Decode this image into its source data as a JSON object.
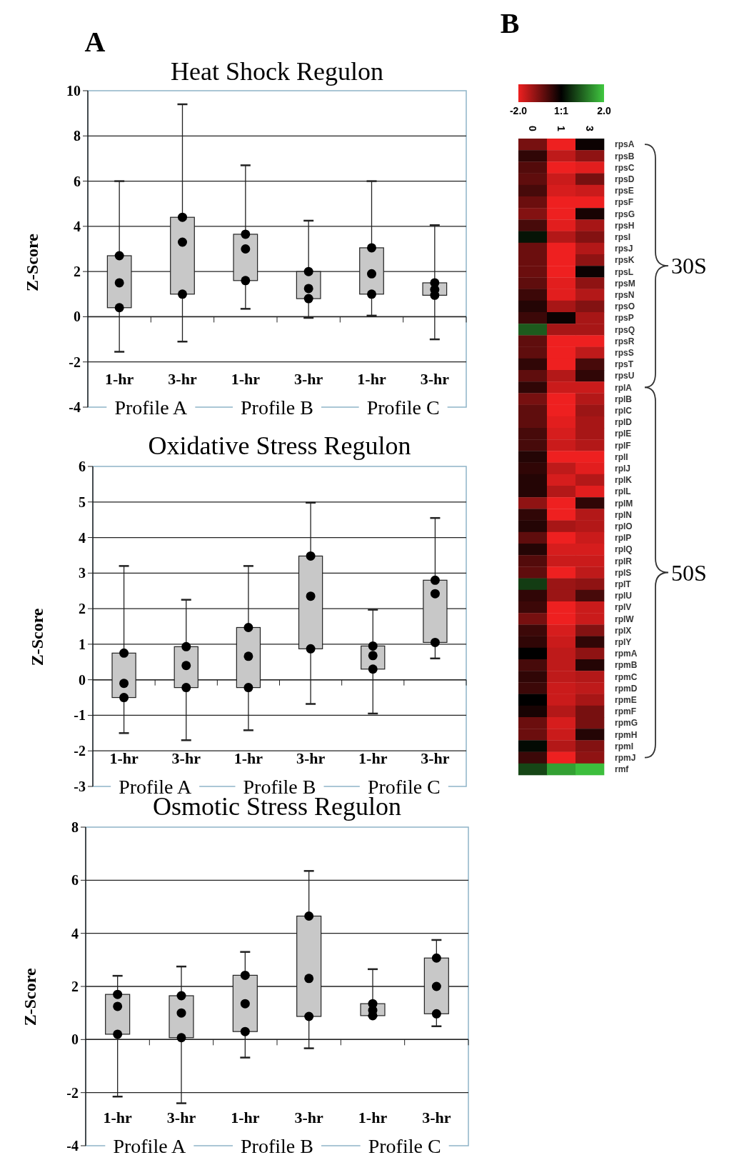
{
  "chart_data": [
    {
      "type": "box",
      "title": "Heat Shock Regulon",
      "ylabel": "Z-Score",
      "categories": [
        "1-hr",
        "3-hr",
        "1-hr",
        "3-hr",
        "1-hr",
        "3-hr"
      ],
      "color": "#c8c8c8",
      "ylim": [
        -4,
        10
      ],
      "yticks": [
        -4,
        -2,
        0,
        2,
        4,
        6,
        8,
        10
      ],
      "grid": "y",
      "annotations": [
        "A",
        "Profile A",
        "Profile B",
        "Profile C"
      ],
      "boxes": [
        {
          "low": -1.55,
          "q1": 0.4,
          "median": 1.5,
          "q3": 2.7,
          "high": 6.0,
          "outliers": [
            0.4,
            2.7
          ]
        },
        {
          "low": -1.1,
          "q1": 1.0,
          "median": 3.3,
          "q3": 4.4,
          "high": 9.4,
          "outliers": [
            1.0,
            4.4
          ]
        },
        {
          "low": 0.35,
          "q1": 1.6,
          "median": 3.0,
          "q3": 3.65,
          "high": 6.7,
          "outliers": [
            1.6,
            3.65
          ]
        },
        {
          "low": -0.05,
          "q1": 0.8,
          "median": 1.25,
          "q3": 2.0,
          "high": 4.25,
          "outliers": [
            0.8,
            2.0
          ]
        },
        {
          "low": 0.05,
          "q1": 1.0,
          "median": 1.9,
          "q3": 3.05,
          "high": 6.0,
          "outliers": [
            1.0,
            3.05
          ]
        },
        {
          "low": -1.0,
          "q1": 0.95,
          "median": 1.2,
          "q3": 1.5,
          "high": 4.05,
          "outliers": [
            0.95,
            1.5
          ]
        }
      ]
    },
    {
      "type": "box",
      "title": "Oxidative Stress Regulon",
      "ylabel": "Z-Score",
      "categories": [
        "1-hr",
        "3-hr",
        "1-hr",
        "3-hr",
        "1-hr",
        "3-hr"
      ],
      "color": "#c8c8c8",
      "ylim": [
        -3,
        6
      ],
      "yticks": [
        -3,
        -2,
        -1,
        0,
        1,
        2,
        3,
        4,
        5,
        6
      ],
      "grid": "y",
      "annotations": [
        "Profile A",
        "Profile B",
        "Profile C"
      ],
      "boxes": [
        {
          "low": -1.5,
          "q1": -0.5,
          "median": -0.1,
          "q3": 0.75,
          "high": 3.2,
          "outliers": [
            -0.5,
            0.75
          ]
        },
        {
          "low": -1.7,
          "q1": -0.22,
          "median": 0.4,
          "q3": 0.93,
          "high": 2.25,
          "outliers": [
            -0.22,
            0.93
          ]
        },
        {
          "low": -1.42,
          "q1": -0.22,
          "median": 0.66,
          "q3": 1.47,
          "high": 3.2,
          "outliers": [
            -0.22,
            1.47
          ]
        },
        {
          "low": -0.68,
          "q1": 0.87,
          "median": 2.35,
          "q3": 3.48,
          "high": 4.98,
          "outliers": [
            0.87,
            3.48
          ]
        },
        {
          "low": -0.95,
          "q1": 0.3,
          "median": 0.68,
          "q3": 0.95,
          "high": 1.97,
          "outliers": [
            0.3,
            0.95
          ]
        },
        {
          "low": 0.6,
          "q1": 1.05,
          "median": 2.42,
          "q3": 2.8,
          "high": 4.55,
          "outliers": [
            1.05,
            2.8
          ]
        }
      ]
    },
    {
      "type": "box",
      "title": "Osmotic Stress Regulon",
      "ylabel": "Z-Score",
      "categories": [
        "1-hr",
        "3-hr",
        "1-hr",
        "3-hr",
        "1-hr",
        "3-hr"
      ],
      "color": "#c8c8c8",
      "ylim": [
        -4,
        8
      ],
      "yticks": [
        -4,
        -2,
        0,
        2,
        4,
        6,
        8
      ],
      "grid": "y",
      "annotations": [
        "Profile A",
        "Profile B",
        "Profile C"
      ],
      "boxes": [
        {
          "low": -2.15,
          "q1": 0.2,
          "median": 1.25,
          "q3": 1.7,
          "high": 2.4,
          "outliers": [
            0.2,
            1.7
          ]
        },
        {
          "low": -2.4,
          "q1": 0.07,
          "median": 1.0,
          "q3": 1.65,
          "high": 2.75,
          "outliers": [
            0.07,
            1.65
          ]
        },
        {
          "low": -0.68,
          "q1": 0.3,
          "median": 1.35,
          "q3": 2.42,
          "high": 3.3,
          "outliers": [
            0.3,
            2.42
          ]
        },
        {
          "low": -0.33,
          "q1": 0.87,
          "median": 2.3,
          "q3": 4.65,
          "high": 6.35,
          "outliers": [
            0.87,
            4.65
          ]
        },
        {
          "low": 0.9,
          "q1": 0.9,
          "median": 1.1,
          "q3": 1.35,
          "high": 2.65,
          "outliers": [
            0.9,
            1.35
          ]
        },
        {
          "low": 0.5,
          "q1": 0.97,
          "median": 2.0,
          "q3": 3.07,
          "high": 3.75,
          "outliers": [
            0.97,
            3.07
          ]
        }
      ]
    },
    {
      "type": "heatmap",
      "categories": [
        "0",
        "1",
        "3"
      ],
      "colors": [
        "#ee2020",
        "#000000",
        "#40c840"
      ],
      "clim": [
        -2,
        2
      ],
      "cticks": [
        {
          "value": -2,
          "label": "-2.0"
        },
        {
          "value": 0,
          "label": "1:1"
        },
        {
          "value": 2,
          "label": "2.0"
        }
      ],
      "annotations": [
        "B",
        "30S",
        "50S"
      ],
      "y_categories": [
        "rpsA",
        "rpsB",
        "rpsC",
        "rpsD",
        "rpsE",
        "rpsF",
        "rpsG",
        "rpsH",
        "rpsI",
        "rpsJ",
        "rpsK",
        "rpsL",
        "rpsM",
        "rpsN",
        "rpsO",
        "rpsP",
        "rpsQ",
        "rpsR",
        "rpsS",
        "rpsT",
        "rpsU",
        "rplA",
        "rplB",
        "rplC",
        "rplD",
        "rplE",
        "rplF",
        "rplI",
        "rplJ",
        "rplK",
        "rplL",
        "rplM",
        "rplN",
        "rplO",
        "rplP",
        "rplQ",
        "rplR",
        "rplS",
        "rplT",
        "rplU",
        "rplV",
        "rplW",
        "rplX",
        "rplY",
        "rpmA",
        "rpmB",
        "rpmC",
        "rpmD",
        "rpmE",
        "rpmF",
        "rpmG",
        "rpmH",
        "rpmI",
        "rpmJ",
        "rmf"
      ],
      "cells": [
        [
          -1.0,
          -2,
          -0.1
        ],
        [
          -0.4,
          -1.6,
          -1.2
        ],
        [
          -0.7,
          -2,
          -1.9
        ],
        [
          -0.8,
          -1.7,
          -1.0
        ],
        [
          -0.6,
          -1.8,
          -1.7
        ],
        [
          -0.9,
          -2,
          -2
        ],
        [
          -1.1,
          -2,
          -0.2
        ],
        [
          -0.6,
          -1.9,
          -1.4
        ],
        [
          0.2,
          -1.5,
          -1.1
        ],
        [
          -0.9,
          -2,
          -1.5
        ],
        [
          -0.9,
          -2,
          -1.2
        ],
        [
          -0.9,
          -2,
          -0.1
        ],
        [
          -0.8,
          -1.9,
          -1.2
        ],
        [
          -0.5,
          -1.9,
          -1.5
        ],
        [
          -0.3,
          -1.4,
          -1.1
        ],
        [
          -0.5,
          -0.1,
          -1.4
        ],
        [
          0.9,
          -1.4,
          -1.4
        ],
        [
          -0.8,
          -2,
          -2
        ],
        [
          -0.8,
          -2,
          -1.6
        ],
        [
          -0.4,
          -2,
          -0.6
        ],
        [
          -0.8,
          -1.5,
          -0.4
        ],
        [
          -0.4,
          -1.7,
          -1.7
        ],
        [
          -1.0,
          -2,
          -1.5
        ],
        [
          -0.8,
          -2,
          -1.3
        ],
        [
          -0.8,
          -1.9,
          -1.4
        ],
        [
          -0.6,
          -1.8,
          -1.4
        ],
        [
          -0.6,
          -1.7,
          -1.5
        ],
        [
          -0.3,
          -2,
          -2
        ],
        [
          -0.4,
          -1.6,
          -1.9
        ],
        [
          -0.3,
          -1.8,
          -1.5
        ],
        [
          -0.3,
          -1.5,
          -1.9
        ],
        [
          -1.2,
          -2,
          -0.4
        ],
        [
          -0.4,
          -2,
          -1.5
        ],
        [
          -0.3,
          -1.4,
          -1.5
        ],
        [
          -0.8,
          -2,
          -1.7
        ],
        [
          -0.3,
          -1.8,
          -1.8
        ],
        [
          -0.7,
          -1.7,
          -1.7
        ],
        [
          -0.8,
          -2,
          -1.6
        ],
        [
          0.6,
          -1.3,
          -1.2
        ],
        [
          -0.4,
          -1.3,
          -0.6
        ],
        [
          -0.5,
          -2,
          -1.7
        ],
        [
          -1.0,
          -2,
          -1.7
        ],
        [
          -0.5,
          -1.8,
          -1.1
        ],
        [
          -0.4,
          -1.7,
          -0.4
        ],
        [
          0,
          -1.6,
          -1.2
        ],
        [
          -0.6,
          -1.6,
          -0.3
        ],
        [
          -0.4,
          -1.6,
          -1.5
        ],
        [
          -0.5,
          -1.7,
          -1.6
        ],
        [
          0,
          -1.7,
          -1.4
        ],
        [
          -0.2,
          -1.5,
          -1.0
        ],
        [
          -0.9,
          -1.8,
          -1.0
        ],
        [
          -0.9,
          -1.7,
          -0.3
        ],
        [
          0.1,
          -1.5,
          -1.1
        ],
        [
          -0.5,
          -2,
          -1.2
        ],
        [
          0.7,
          1.6,
          1.9
        ]
      ]
    }
  ]
}
